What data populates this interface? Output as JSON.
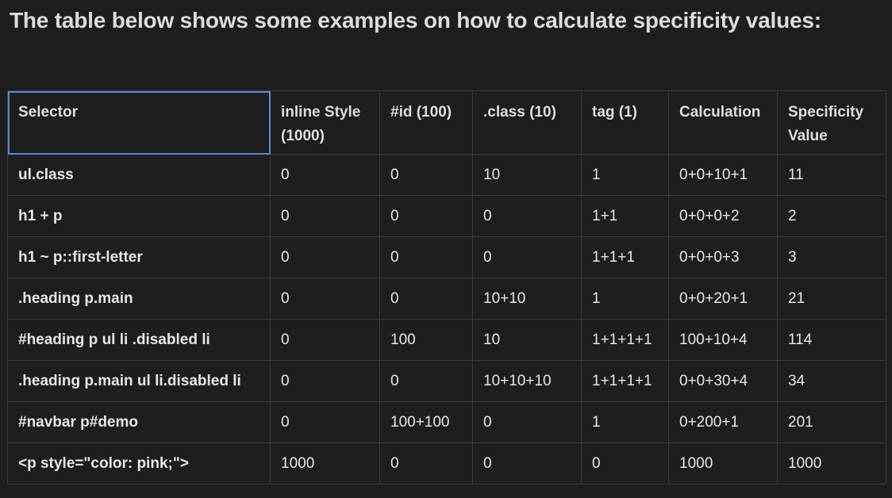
{
  "heading": "The table below shows some examples on how to calculate specificity values:",
  "table": {
    "headers": [
      "Selector",
      "inline Style (1000)",
      "#id (100)",
      ".class (10)",
      "tag (1)",
      "Calculation",
      "Specificity Value"
    ],
    "rows": [
      [
        "ul.class",
        "0",
        "0",
        "10",
        "1",
        "0+0+10+1",
        "11"
      ],
      [
        "h1 + p",
        "0",
        "0",
        "0",
        "1+1",
        "0+0+0+2",
        "2"
      ],
      [
        "h1 ~ p::first-letter",
        "0",
        "0",
        "0",
        "1+1+1",
        "0+0+0+3",
        "3"
      ],
      [
        ".heading p.main",
        "0",
        "0",
        "10+10",
        "1",
        "0+0+20+1",
        "21"
      ],
      [
        "#heading p ul li .disabled li",
        "0",
        "100",
        "10",
        "1+1+1+1",
        "100+10+4",
        "114"
      ],
      [
        ".heading p.main ul li.disabled li",
        "0",
        "0",
        "10+10+10",
        "1+1+1+1",
        "0+0+30+4",
        "34"
      ],
      [
        "#navbar p#demo",
        "0",
        "100+100",
        "0",
        "1",
        "0+200+1",
        "201"
      ],
      [
        "<p style=\"color: pink;\">",
        "1000",
        "0",
        "0",
        "0",
        "1000",
        "1000"
      ]
    ]
  },
  "colors": {
    "background": "#1e1e1e",
    "border": "#3a3a3a",
    "selection_outline": "#5b8ad6"
  }
}
